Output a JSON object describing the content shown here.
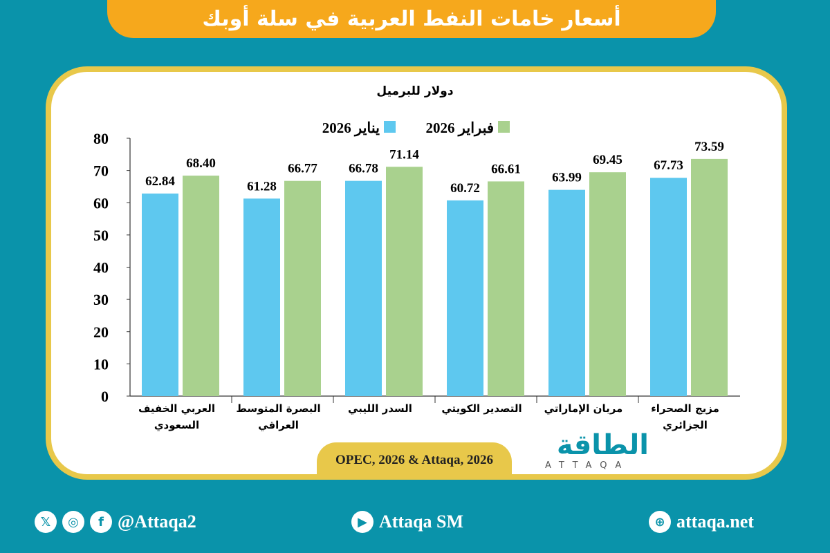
{
  "header": {
    "title": "أسعار خامات النفط العربية في سلة أوبك"
  },
  "chart_data": {
    "type": "bar",
    "title": "",
    "ylabel": "دولار للبرميل",
    "xlabel": "",
    "ylim": [
      0,
      80
    ],
    "yticks": [
      "0",
      "10",
      "20",
      "30",
      "40",
      "50",
      "60",
      "70",
      "80"
    ],
    "grid": false,
    "legend_position": "top",
    "categories": [
      "العربي الخفيف السعودي",
      "البصرة المتوسط العراقي",
      "السدر الليبي",
      "التصدير الكويتي",
      "مربان الإماراتي",
      "مزيج الصحراء الجزائري"
    ],
    "series": [
      {
        "name": "يناير 2026",
        "color": "#5ec8ef",
        "values": [
          62.84,
          61.28,
          66.78,
          60.72,
          63.99,
          67.73
        ],
        "labels": [
          "62.84",
          "61.28",
          "66.78",
          "60.72",
          "63.99",
          "67.73"
        ]
      },
      {
        "name": "فبراير 2026",
        "color": "#a9d18e",
        "values": [
          68.4,
          66.77,
          71.14,
          66.61,
          69.45,
          73.59
        ],
        "labels": [
          "68.40",
          "66.77",
          "71.14",
          "66.61",
          "69.45",
          "73.59"
        ]
      }
    ]
  },
  "source": "OPEC, 2026 & Attaqa, 2026",
  "logo": {
    "arabic": "الطاقة",
    "latin": "ATTAQA"
  },
  "footer": {
    "social_handle": "@Attaqa2",
    "youtube": "Attaqa SM",
    "website": "attaqa.net"
  },
  "colors": {
    "background": "#0a93aa",
    "banner": "#f6a81c",
    "border": "#e8c84a"
  }
}
